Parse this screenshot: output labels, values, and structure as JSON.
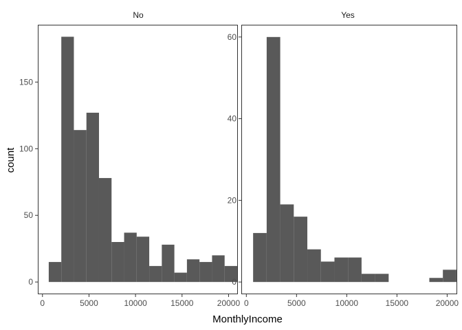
{
  "chart_data": {
    "type": "bar",
    "subtype": "faceted-histogram",
    "title": "",
    "xlabel": "MonthlyIncome",
    "ylabel": "count",
    "bin_width": 1350,
    "grid": false,
    "bar_color": "#595959",
    "panels": [
      {
        "name": "No",
        "xlim": [
          -500,
          21000
        ],
        "ylim": [
          -9.2,
          193
        ],
        "x_ticks": [
          0,
          5000,
          10000,
          15000,
          20000
        ],
        "x_tick_labels": [
          "0",
          "5000",
          "10000",
          "15000",
          "20000"
        ],
        "y_ticks": [
          0,
          50,
          100,
          150
        ],
        "y_tick_labels": [
          "0",
          "50",
          "100",
          "150"
        ],
        "bins": [
          {
            "x0": 675,
            "x1": 2025,
            "count": 15
          },
          {
            "x0": 2025,
            "x1": 3375,
            "count": 184
          },
          {
            "x0": 3375,
            "x1": 4725,
            "count": 114
          },
          {
            "x0": 4725,
            "x1": 6075,
            "count": 127
          },
          {
            "x0": 6075,
            "x1": 7425,
            "count": 78
          },
          {
            "x0": 7425,
            "x1": 8775,
            "count": 30
          },
          {
            "x0": 8775,
            "x1": 10125,
            "count": 37
          },
          {
            "x0": 10125,
            "x1": 11475,
            "count": 34
          },
          {
            "x0": 11475,
            "x1": 12825,
            "count": 12
          },
          {
            "x0": 12825,
            "x1": 14175,
            "count": 28
          },
          {
            "x0": 14175,
            "x1": 15525,
            "count": 7
          },
          {
            "x0": 15525,
            "x1": 16875,
            "count": 17
          },
          {
            "x0": 16875,
            "x1": 18225,
            "count": 15
          },
          {
            "x0": 18225,
            "x1": 19575,
            "count": 20
          },
          {
            "x0": 19575,
            "x1": 20925,
            "count": 12
          }
        ]
      },
      {
        "name": "Yes",
        "xlim": [
          -500,
          21000
        ],
        "ylim": [
          -3,
          63
        ],
        "x_ticks": [
          0,
          5000,
          10000,
          15000,
          20000
        ],
        "x_tick_labels": [
          "0",
          "5000",
          "10000",
          "15000",
          "20000"
        ],
        "y_ticks": [
          0,
          20,
          40,
          60
        ],
        "y_tick_labels": [
          "0",
          "20",
          "40",
          "60"
        ],
        "bins": [
          {
            "x0": 675,
            "x1": 2025,
            "count": 12
          },
          {
            "x0": 2025,
            "x1": 3375,
            "count": 60
          },
          {
            "x0": 3375,
            "x1": 4725,
            "count": 19
          },
          {
            "x0": 4725,
            "x1": 6075,
            "count": 16
          },
          {
            "x0": 6075,
            "x1": 7425,
            "count": 8
          },
          {
            "x0": 7425,
            "x1": 8775,
            "count": 5
          },
          {
            "x0": 8775,
            "x1": 10125,
            "count": 6
          },
          {
            "x0": 10125,
            "x1": 11475,
            "count": 6
          },
          {
            "x0": 11475,
            "x1": 12825,
            "count": 2
          },
          {
            "x0": 12825,
            "x1": 14175,
            "count": 2
          },
          {
            "x0": 14175,
            "x1": 15525,
            "count": 0
          },
          {
            "x0": 15525,
            "x1": 16875,
            "count": 0
          },
          {
            "x0": 16875,
            "x1": 18225,
            "count": 0
          },
          {
            "x0": 18225,
            "x1": 19575,
            "count": 1
          },
          {
            "x0": 19575,
            "x1": 20925,
            "count": 3
          }
        ]
      }
    ]
  }
}
